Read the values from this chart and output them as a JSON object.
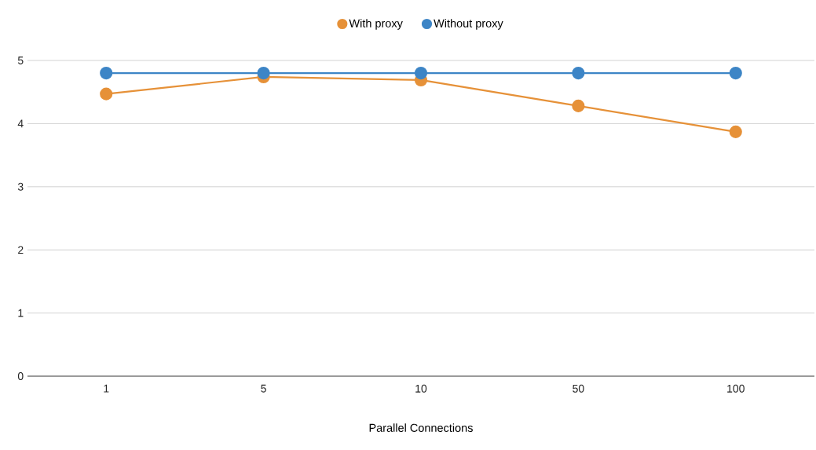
{
  "chart_data": {
    "type": "line",
    "xlabel": "Parallel Connections",
    "categories": [
      "1",
      "5",
      "10",
      "50",
      "100"
    ],
    "series": [
      {
        "name": "With proxy",
        "color": "#e69138",
        "values": [
          4.47,
          4.74,
          4.69,
          4.28,
          3.87
        ]
      },
      {
        "name": "Without proxy",
        "color": "#3d85c6",
        "values": [
          4.8,
          4.8,
          4.8,
          4.8,
          4.8
        ]
      }
    ],
    "ylim": [
      0,
      5
    ],
    "yticks": [
      0,
      1,
      2,
      3,
      4,
      5
    ],
    "grid": "y",
    "legend": "top",
    "marker": "circle",
    "line_style": "solid"
  }
}
